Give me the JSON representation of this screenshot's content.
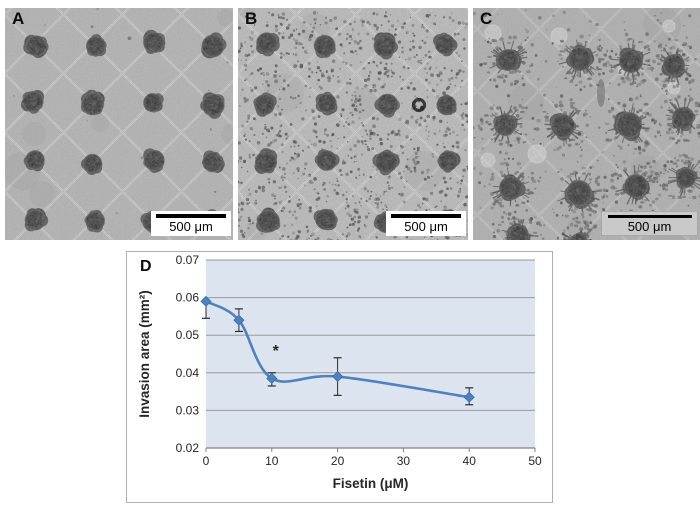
{
  "panels": [
    {
      "label": "A",
      "scalebar": "500 μm",
      "style": "uniform-spheroid-array",
      "bg": "#b6b6b6",
      "scalebar_bg": "#ffffff"
    },
    {
      "label": "B",
      "scalebar": "500 μm",
      "style": "spheroids-with-invading-cells",
      "bg": "#bdbdbd",
      "scalebar_bg": "#ffffff"
    },
    {
      "label": "C",
      "scalebar": "500 μm",
      "style": "dispersed-spheroids-spiky-invasion",
      "bg": "#b2b2b2",
      "scalebar_bg": "#c9c9c9"
    }
  ],
  "chart_panel": {
    "label": "D"
  },
  "chart_data": {
    "type": "line",
    "title": "",
    "xlabel": "Fisetin (μM)",
    "ylabel": "Invasion area (mm²)",
    "x": [
      0,
      5,
      10,
      20,
      40
    ],
    "y": [
      0.059,
      0.054,
      0.0385,
      0.039,
      0.0335
    ],
    "error_minus": [
      0.0045,
      0.003,
      0.002,
      0.005,
      0.002
    ],
    "error_plus": [
      0,
      0.003,
      0.0015,
      0.005,
      0.0025
    ],
    "annotations": [
      {
        "text": "*",
        "x": 10,
        "y": 0.0445
      }
    ],
    "xlim": [
      0,
      50
    ],
    "ylim": [
      0.02,
      0.07
    ],
    "xticks": [
      0,
      10,
      20,
      30,
      40,
      50
    ],
    "yticks": [
      0.02,
      0.03,
      0.04,
      0.05,
      0.06,
      0.07
    ],
    "grid": true,
    "legend": false,
    "smooth": true,
    "line_color": "#4f81bd",
    "marker": "diamond",
    "plot_bg": "#dce4f0",
    "grid_color": "#9a9a9a",
    "axis_color": "#808080",
    "error_color": "#2b2b2b"
  }
}
